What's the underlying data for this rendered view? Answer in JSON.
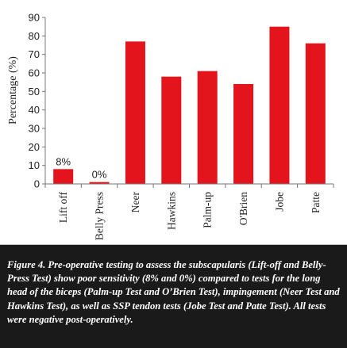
{
  "chart_data": {
    "type": "bar",
    "categories": [
      "Lift off",
      "Belly Press",
      "Neer",
      "Hawkins",
      "Palm-up",
      "O'Brien",
      "Jobe",
      "Patte"
    ],
    "values": [
      8,
      0,
      77,
      58,
      61,
      54,
      85,
      76
    ],
    "display_values": [
      8,
      1,
      77,
      58,
      61,
      54,
      85,
      76
    ],
    "data_labels": [
      "8%",
      "0%",
      "",
      "",
      "",
      "",
      "",
      ""
    ],
    "ylabel": "Percentage (%)",
    "xlabel": "",
    "ylim": [
      0,
      90
    ],
    "yticks": [
      0,
      10,
      20,
      30,
      40,
      50,
      60,
      70,
      80,
      90
    ],
    "grid": false,
    "legend": "none",
    "bar_color": "#e3141c"
  },
  "caption": {
    "text": "Figure 4. Pre-operative testing to assess the subscapularis (Lift-off and Belly-Press Test) show poor sensitivity (8% and 0%) compared to tests for the long head of the biceps (Palm-up Test and O’Brien Test), impingement (Neer Test and Hawkins Test), as well as SSP tendon tests (Jobe Test and Patte Test). All tests were negative post-operatively."
  }
}
